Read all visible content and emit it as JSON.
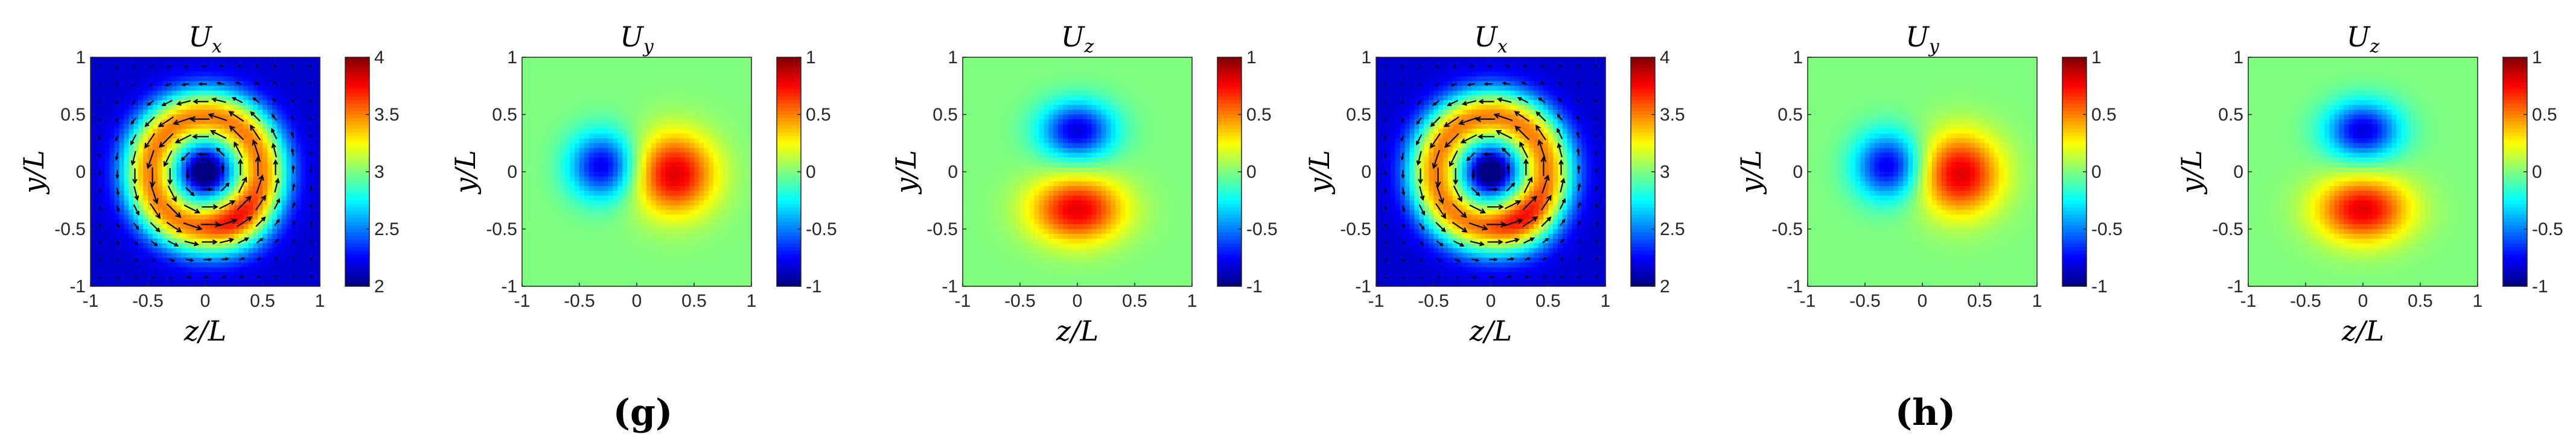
{
  "chart_data": [
    {
      "type": "heatmap",
      "title": "U_x",
      "title_main": "U",
      "title_sub": "x",
      "xlabel": "z/L",
      "ylabel": "y/L",
      "xlim": [
        -1,
        1
      ],
      "ylim": [
        -1,
        1
      ],
      "xticks": [
        "-1",
        "-0.5",
        "0",
        "0.5",
        "1"
      ],
      "yticks": [
        "-1",
        "-0.5",
        "0",
        "0.5",
        "1"
      ],
      "colorbar": {
        "min": 2,
        "max": 4,
        "ticks": [
          "2",
          "2.5",
          "3",
          "3.5",
          "4"
        ]
      },
      "field": "vortex_x",
      "quiver": true
    },
    {
      "type": "heatmap",
      "title": "U_y",
      "title_main": "U",
      "title_sub": "y",
      "xlabel": "",
      "ylabel": "y/L",
      "xlim": [
        -1,
        1
      ],
      "ylim": [
        -1,
        1
      ],
      "xticks": [
        "-1",
        "-0.5",
        "0",
        "0.5",
        "1"
      ],
      "yticks": [
        "-1",
        "-0.5",
        "0",
        "0.5",
        "1"
      ],
      "colorbar": {
        "min": -1,
        "max": 1,
        "ticks": [
          "-1",
          "-0.5",
          "0",
          "0.5",
          "1"
        ]
      },
      "field": "dipole_lr",
      "quiver": false
    },
    {
      "type": "heatmap",
      "title": "U_z",
      "title_main": "U",
      "title_sub": "z",
      "xlabel": "z/L",
      "ylabel": "y/L",
      "xlim": [
        -1,
        1
      ],
      "ylim": [
        -1,
        1
      ],
      "xticks": [
        "-1",
        "-0.5",
        "0",
        "0.5",
        "1"
      ],
      "yticks": [
        "-1",
        "-0.5",
        "0",
        "0.5",
        "1"
      ],
      "colorbar": {
        "min": -1,
        "max": 1,
        "ticks": [
          "-1",
          "-0.5",
          "0",
          "0.5",
          "1"
        ]
      },
      "field": "dipole_tb",
      "quiver": false
    },
    {
      "type": "heatmap",
      "title": "U_x",
      "title_main": "U",
      "title_sub": "x",
      "xlabel": "z/L",
      "ylabel": "y/L",
      "xlim": [
        -1,
        1
      ],
      "ylim": [
        -1,
        1
      ],
      "xticks": [
        "-1",
        "-0.5",
        "0",
        "0.5",
        "1"
      ],
      "yticks": [
        "-1",
        "-0.5",
        "0",
        "0.5",
        "1"
      ],
      "colorbar": {
        "min": 2,
        "max": 4,
        "ticks": [
          "2",
          "2.5",
          "3",
          "3.5",
          "4"
        ]
      },
      "field": "vortex_x",
      "quiver": true
    },
    {
      "type": "heatmap",
      "title": "U_y",
      "title_main": "U",
      "title_sub": "y",
      "xlabel": "",
      "ylabel": "y/L",
      "xlim": [
        -1,
        1
      ],
      "ylim": [
        -1,
        1
      ],
      "xticks": [
        "-1",
        "-0.5",
        "0",
        "0.5",
        "1"
      ],
      "yticks": [
        "-1",
        "-0.5",
        "0",
        "0.5",
        "1"
      ],
      "colorbar": {
        "min": -1,
        "max": 1,
        "ticks": [
          "-1",
          "-0.5",
          "0",
          "0.5",
          "1"
        ]
      },
      "field": "dipole_lr",
      "quiver": false
    },
    {
      "type": "heatmap",
      "title": "U_z",
      "title_main": "U",
      "title_sub": "z",
      "xlabel": "z/L",
      "ylabel": "y/L",
      "xlim": [
        -1,
        1
      ],
      "ylim": [
        -1,
        1
      ],
      "xticks": [
        "-1",
        "-0.5",
        "0",
        "0.5",
        "1"
      ],
      "yticks": [
        "-1",
        "-0.5",
        "0",
        "0.5",
        "1"
      ],
      "colorbar": {
        "min": -1,
        "max": 1,
        "ticks": [
          "-1",
          "-0.5",
          "0",
          "0.5",
          "1"
        ]
      },
      "field": "dipole_tb",
      "quiver": false
    }
  ],
  "panel_labels": [
    "(g)",
    "(h)"
  ],
  "colormap": "jet"
}
